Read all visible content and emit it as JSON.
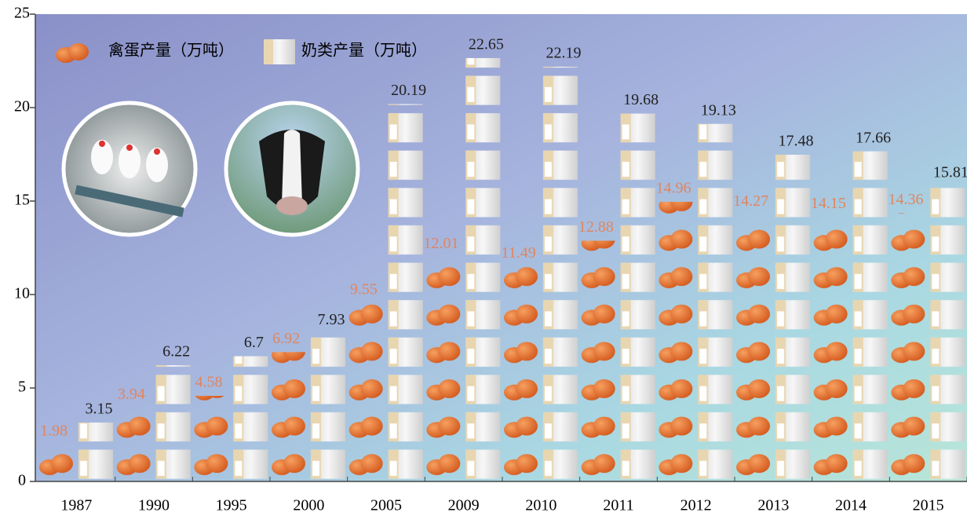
{
  "chart_data": {
    "type": "pictograph",
    "categories": [
      "1987",
      "1990",
      "1995",
      "2000",
      "2005",
      "2009",
      "2010",
      "2011",
      "2012",
      "2013",
      "2014",
      "2015"
    ],
    "series": [
      {
        "name": "禽蛋产量（万吨）",
        "color": "#e0855f",
        "values": [
          1.98,
          3.94,
          4.58,
          6.92,
          9.55,
          12.01,
          11.49,
          12.88,
          14.96,
          14.27,
          14.15,
          14.36
        ]
      },
      {
        "name": "奶类产量（万吨）",
        "color": "#222222",
        "values": [
          3.15,
          6.22,
          6.7,
          7.93,
          20.19,
          22.65,
          22.19,
          19.68,
          19.13,
          17.48,
          17.66,
          15.81
        ]
      }
    ],
    "ylim": [
      0,
      25
    ],
    "yticks": [
      0,
      5,
      10,
      15,
      20,
      25
    ]
  }
}
